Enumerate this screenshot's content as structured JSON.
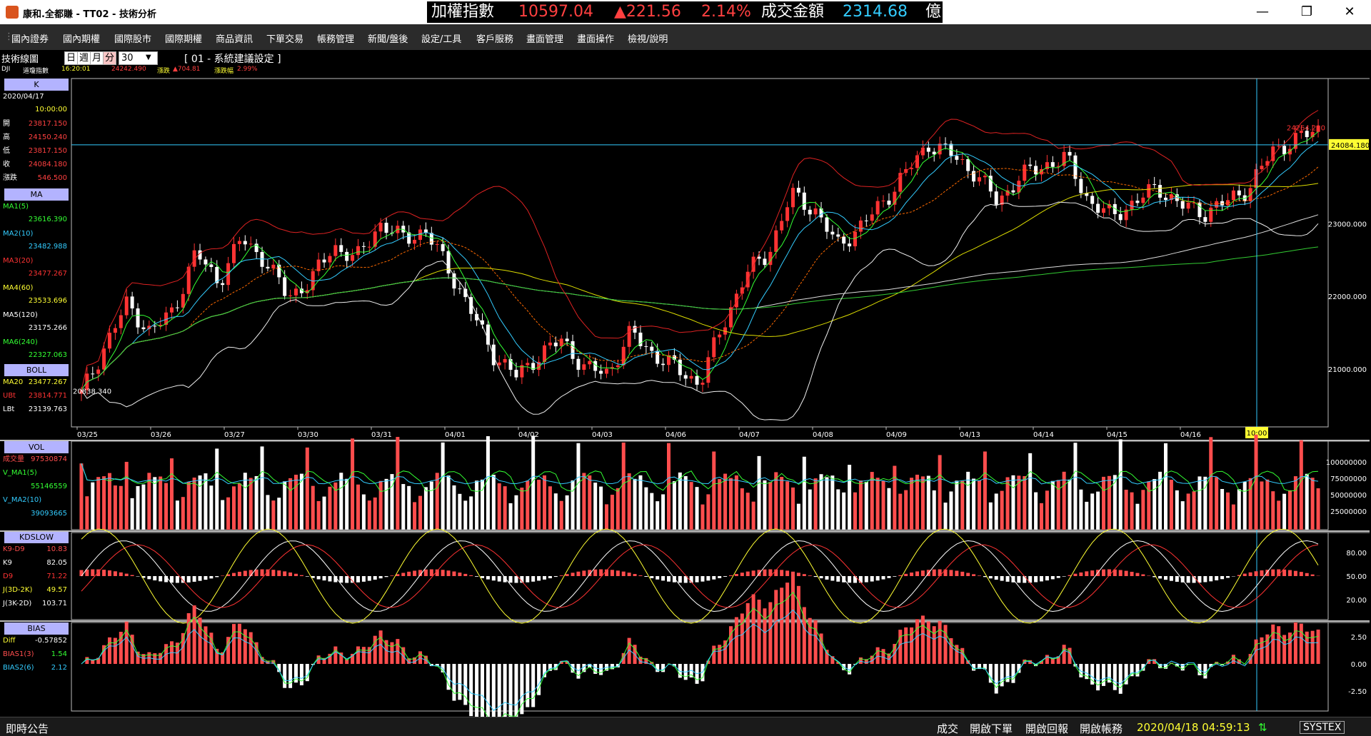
{
  "window": {
    "title": "康和.全都賺 - TT02 - 技術分析",
    "minimize": "—",
    "restore": "❐",
    "close": "✕"
  },
  "ticker": {
    "name": "加權指數",
    "value": "10597.04",
    "change": "▲221.56",
    "pct": "2.14%",
    "vol_label": "成交金額",
    "vol_value": "2314.68",
    "unit": "億"
  },
  "menu": [
    "國內證券",
    "國內期權",
    "國際股市",
    "國際期權",
    "商品資訊",
    "下單交易",
    "帳務管理",
    "新聞/盤後",
    "設定/工具",
    "客戶服務",
    "畫面管理",
    "畫面操作",
    "檢視/說明"
  ],
  "toolbar": {
    "panel_title": "技術線圖",
    "periods": [
      "日",
      "週",
      "月",
      "分"
    ],
    "active_period": "分",
    "interval": "30",
    "setting": "[ 01 - 系統建議設定 ]",
    "symbol": "DJI",
    "symbol_name": "道瓊指數",
    "time": "16:20:01",
    "last": "24242.490",
    "change_label": "漲跌",
    "change": "▲704.81",
    "pct_label": "漲跌幅",
    "pct": "2.99%"
  },
  "left": {
    "k": {
      "header": "K",
      "date": "2020/04/17",
      "time": "10:00:00",
      "rows": [
        {
          "label": "開",
          "value": "23817.150"
        },
        {
          "label": "高",
          "value": "24150.240"
        },
        {
          "label": "低",
          "value": "23817.150"
        },
        {
          "label": "收",
          "value": "24084.180"
        },
        {
          "label": "漲跌",
          "value": "546.500"
        }
      ]
    },
    "ma": {
      "header": "MA",
      "rows": [
        {
          "label": "MA1(5)",
          "value": "23616.390",
          "color": "#33ff33"
        },
        {
          "label": "MA2(10)",
          "value": "23482.988",
          "color": "#33ccff"
        },
        {
          "label": "MA3(20)",
          "value": "23477.267",
          "color": "#ff3333"
        },
        {
          "label": "MA4(60)",
          "value": "23533.696",
          "color": "#ffff33"
        },
        {
          "label": "MA5(120)",
          "value": "23175.266",
          "color": "#ffffff"
        },
        {
          "label": "MA6(240)",
          "value": "22327.063",
          "color": "#33ff33"
        }
      ]
    },
    "boll": {
      "header": "BOLL",
      "rows": [
        {
          "label": "MA20",
          "value": "23477.267",
          "color": "#ffff33"
        },
        {
          "label": "UBt",
          "value": "23814.771",
          "color": "#ff3333"
        },
        {
          "label": "LBt",
          "value": "23139.763",
          "color": "#ffffff"
        }
      ]
    },
    "vol": {
      "header": "VOL",
      "rows": [
        {
          "label": "成交量",
          "value": "97530874",
          "color": "#ff4d4d"
        },
        {
          "label": "V_MA1(5)",
          "value": "55146559",
          "color": "#33ff33"
        },
        {
          "label": "V_MA2(10)",
          "value": "39093665",
          "color": "#33ccff"
        }
      ]
    },
    "kd": {
      "header": "KDSLOW",
      "rows": [
        {
          "label": "K9-D9",
          "value": "10.83",
          "color": "#ff4d4d"
        },
        {
          "label": "K9",
          "value": "82.05",
          "color": "#ffffff"
        },
        {
          "label": "D9",
          "value": "71.22",
          "color": "#ff3333"
        },
        {
          "label": "J(3D-2K)",
          "value": "49.57",
          "color": "#ffff33"
        },
        {
          "label": "J(3K-2D)",
          "value": "103.71",
          "color": "#ffffff"
        }
      ]
    },
    "bias": {
      "header": "BIAS",
      "rows": [
        {
          "label": "Diff",
          "value": "-0.57852",
          "color": "#ffff33"
        },
        {
          "label": "BIAS1(3)",
          "value": "1.54",
          "color": "#33ff33"
        },
        {
          "label": "BIAS2(6)",
          "value": "2.12",
          "color": "#33ccff"
        }
      ]
    }
  },
  "chart_data": {
    "type": "candlestick",
    "dates": [
      "03/25",
      "03/26",
      "03/27",
      "03/30",
      "03/31",
      "04/01",
      "04/02",
      "04/03",
      "04/06",
      "04/07",
      "04/08",
      "04/09",
      "04/13",
      "04/14",
      "04/15",
      "04/16"
    ],
    "current_time_label": "10:00",
    "price_ticks": [
      21000,
      22000,
      23000
    ],
    "annotations": {
      "high": "24264.210",
      "low": "20838.340",
      "last": "24084.180"
    },
    "close_path": [
      20650,
      21300,
      21900,
      21500,
      21800,
      22600,
      22200,
      22800,
      22500,
      22000,
      22200,
      22700,
      22500,
      23000,
      22800,
      22900,
      22400,
      21800,
      21200,
      20900,
      21200,
      21400,
      21000,
      20950,
      21500,
      21200,
      21000,
      20800,
      21600,
      22300,
      22600,
      23400,
      23200,
      22700,
      22950,
      23300,
      23700,
      24100,
      23950,
      23700,
      23300,
      23650,
      23800,
      23900,
      23300,
      23100,
      23300,
      23500,
      23250,
      23150,
      23300,
      23500,
      24000,
      24150,
      24300
    ],
    "volume_ticks": [
      "25000000",
      "50000000",
      "75000000",
      "100000000"
    ],
    "kd_ticks": [
      "20.00",
      "50.00",
      "80.00"
    ],
    "bias_ticks": [
      "-2.50",
      "0.00",
      "2.50"
    ]
  },
  "status": {
    "announce": "即時公告",
    "items": [
      "成交",
      "開啟下單",
      "開啟回報",
      "開啟帳務"
    ],
    "datetime": "2020/04/18 04:59:13",
    "brand": "SYSTEX"
  }
}
